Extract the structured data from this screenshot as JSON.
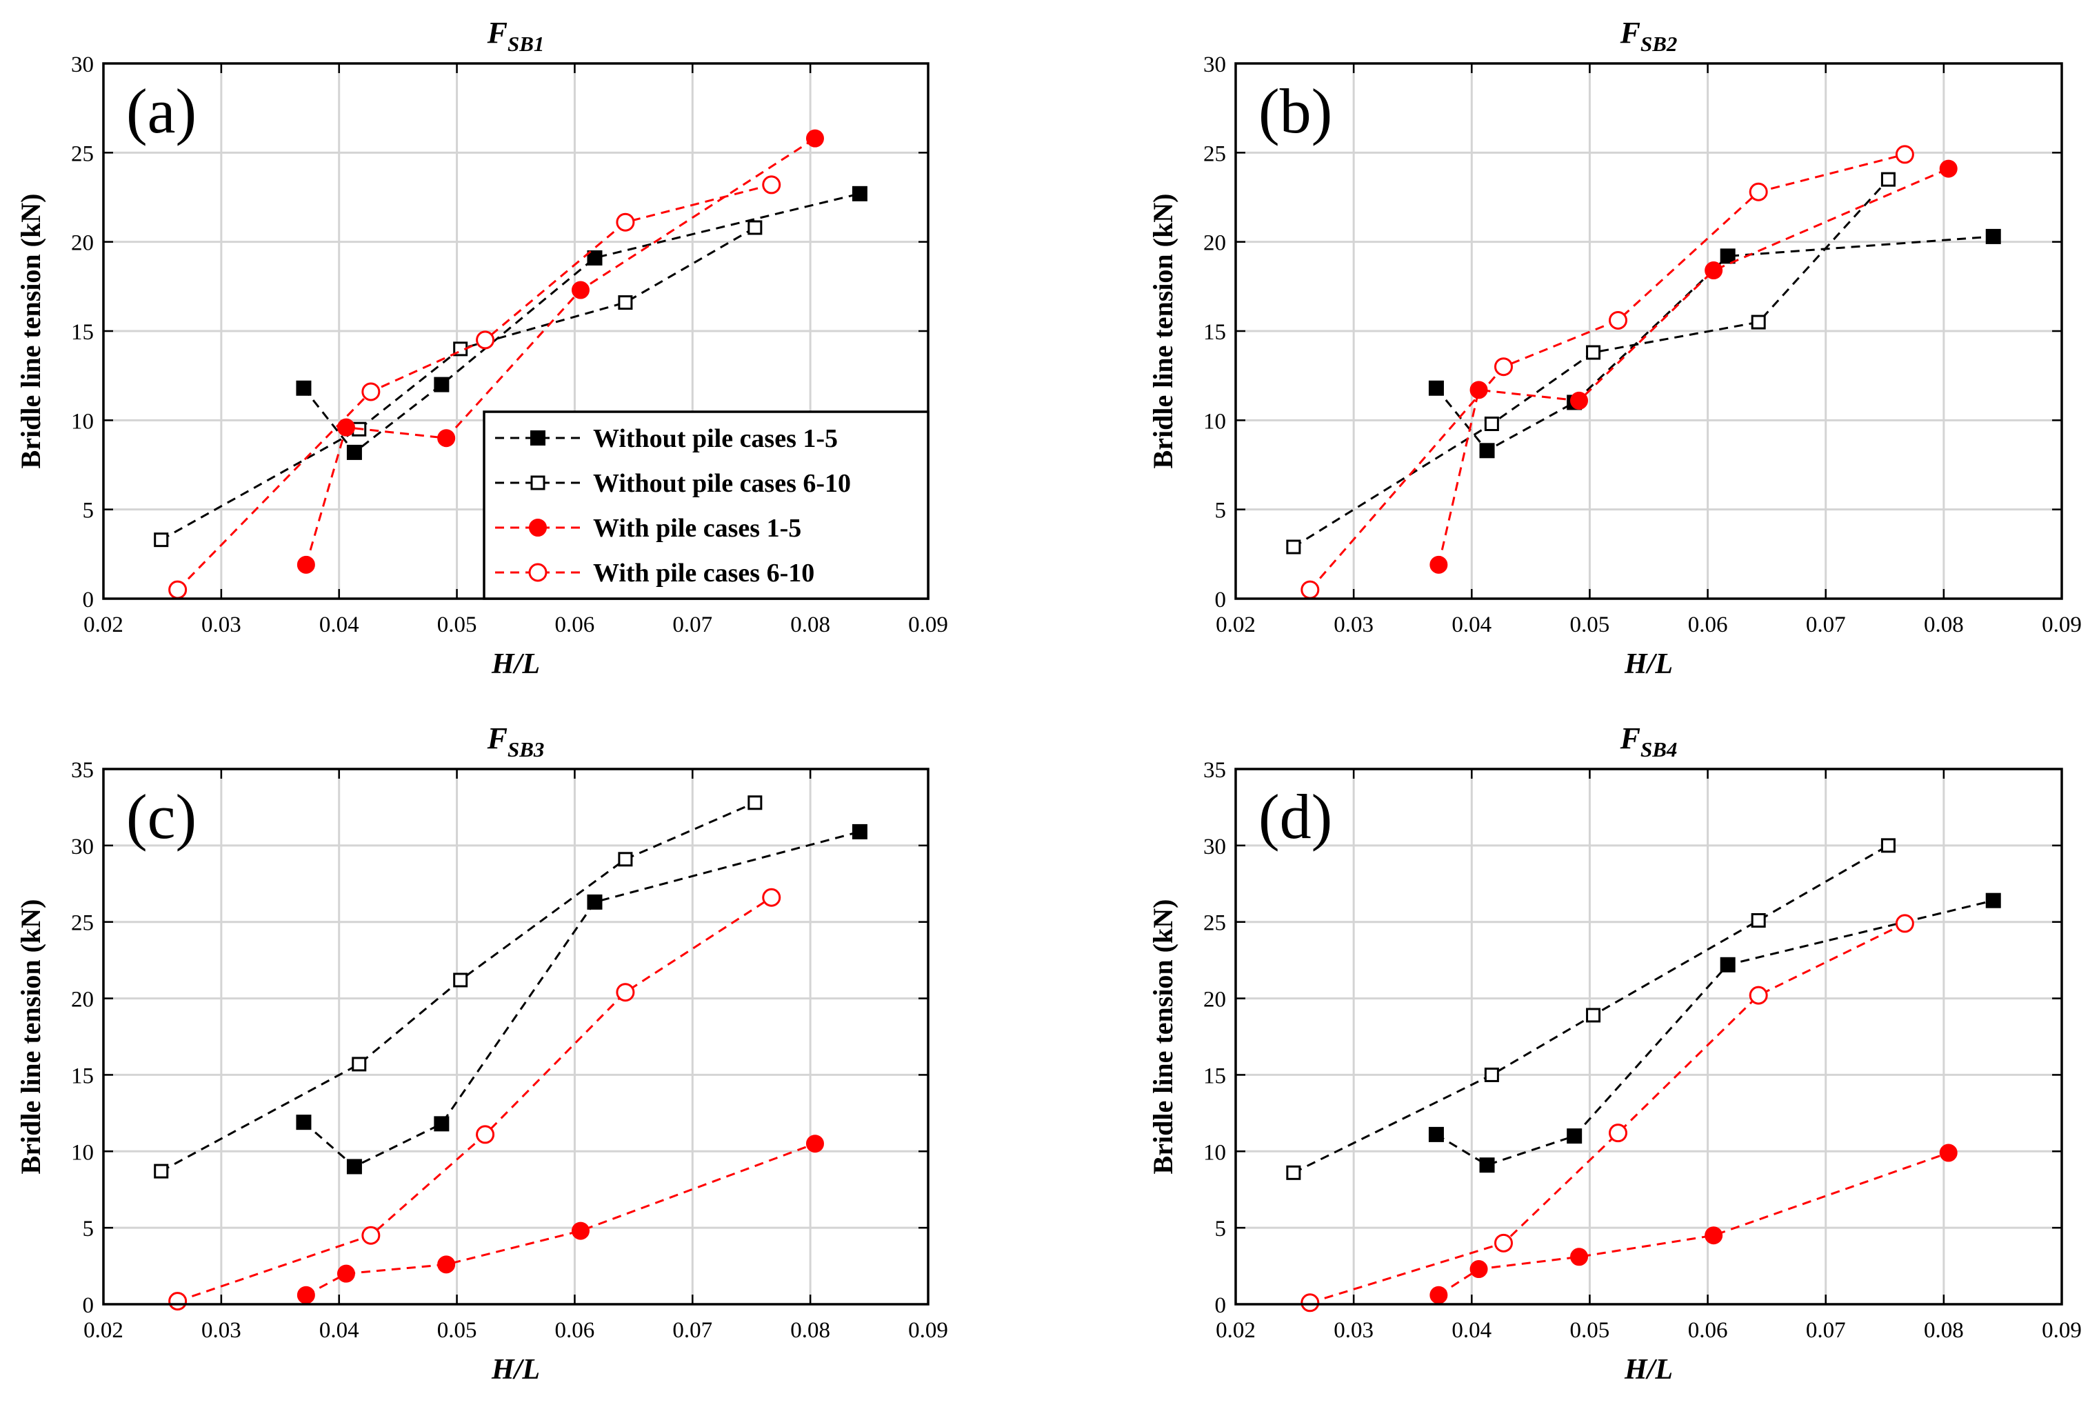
{
  "chart_data": [
    {
      "type": "line",
      "panel_label": "(a)",
      "title": "F",
      "title_subscript": "SB1",
      "xlabel": "H/L",
      "ylabel": "Bridle line tension (kN)",
      "xlim": [
        0.02,
        0.09
      ],
      "ylim": [
        0,
        30
      ],
      "xticks": [
        "0.02",
        "0.03",
        "0.04",
        "0.05",
        "0.06",
        "0.07",
        "0.08",
        "0.09"
      ],
      "yticks": [
        "0",
        "5",
        "10",
        "15",
        "20",
        "25",
        "30"
      ],
      "grid": true,
      "legend_position": "bottom-right",
      "series": [
        {
          "name": "Without pile cases 1-5",
          "color": "#000000",
          "marker": "filled-square",
          "x": [
            0.037,
            0.0413,
            0.0487,
            0.0617,
            0.0842
          ],
          "y": [
            11.8,
            8.2,
            12.0,
            19.1,
            22.7
          ]
        },
        {
          "name": "Without pile cases 6-10",
          "color": "#000000",
          "marker": "open-square",
          "x": [
            0.0249,
            0.0417,
            0.0503,
            0.0643,
            0.0753
          ],
          "y": [
            3.3,
            9.5,
            14.0,
            16.6,
            20.8
          ]
        },
        {
          "name": "With pile cases 1-5",
          "color": "#ff0000",
          "marker": "filled-circle",
          "x": [
            0.0372,
            0.0406,
            0.0491,
            0.0605,
            0.0804
          ],
          "y": [
            1.9,
            9.6,
            9.0,
            17.3,
            25.8
          ]
        },
        {
          "name": "With pile cases 6-10",
          "color": "#ff0000",
          "marker": "open-circle",
          "x": [
            0.0263,
            0.0427,
            0.0524,
            0.0643,
            0.0767
          ],
          "y": [
            0.5,
            11.6,
            14.5,
            21.1,
            23.2
          ]
        }
      ]
    },
    {
      "type": "line",
      "panel_label": "(b)",
      "title": "F",
      "title_subscript": "SB2",
      "xlabel": "H/L",
      "ylabel": "Bridle line tension (kN)",
      "xlim": [
        0.02,
        0.09
      ],
      "ylim": [
        0,
        30
      ],
      "xticks": [
        "0.02",
        "0.03",
        "0.04",
        "0.05",
        "0.06",
        "0.07",
        "0.08",
        "0.09"
      ],
      "yticks": [
        "0",
        "5",
        "10",
        "15",
        "20",
        "25",
        "30"
      ],
      "grid": true,
      "series": [
        {
          "name": "Without pile cases 1-5",
          "color": "#000000",
          "marker": "filled-square",
          "x": [
            0.037,
            0.0413,
            0.0487,
            0.0617,
            0.0842
          ],
          "y": [
            11.8,
            8.3,
            11.0,
            19.2,
            20.3
          ]
        },
        {
          "name": "Without pile cases 6-10",
          "color": "#000000",
          "marker": "open-square",
          "x": [
            0.0249,
            0.0417,
            0.0503,
            0.0643,
            0.0753
          ],
          "y": [
            2.9,
            9.8,
            13.8,
            15.5,
            23.5
          ]
        },
        {
          "name": "With pile cases 1-5",
          "color": "#ff0000",
          "marker": "filled-circle",
          "x": [
            0.0372,
            0.0406,
            0.0491,
            0.0605,
            0.0804
          ],
          "y": [
            1.9,
            11.7,
            11.1,
            18.4,
            24.1
          ]
        },
        {
          "name": "With pile cases 6-10",
          "color": "#ff0000",
          "marker": "open-circle",
          "x": [
            0.0263,
            0.0427,
            0.0524,
            0.0643,
            0.0767
          ],
          "y": [
            0.5,
            13.0,
            15.6,
            22.8,
            24.9
          ]
        }
      ]
    },
    {
      "type": "line",
      "panel_label": "(c)",
      "title": "F",
      "title_subscript": "SB3",
      "xlabel": "H/L",
      "ylabel": "Bridle line tension (kN)",
      "xlim": [
        0.02,
        0.09
      ],
      "ylim": [
        0,
        35
      ],
      "xticks": [
        "0.02",
        "0.03",
        "0.04",
        "0.05",
        "0.06",
        "0.07",
        "0.08",
        "0.09"
      ],
      "yticks": [
        "0",
        "5",
        "10",
        "15",
        "20",
        "25",
        "30",
        "35"
      ],
      "grid": true,
      "series": [
        {
          "name": "Without pile cases 1-5",
          "color": "#000000",
          "marker": "filled-square",
          "x": [
            0.037,
            0.0413,
            0.0487,
            0.0617,
            0.0842
          ],
          "y": [
            11.9,
            9.0,
            11.8,
            26.3,
            30.9
          ]
        },
        {
          "name": "Without pile cases 6-10",
          "color": "#000000",
          "marker": "open-square",
          "x": [
            0.0249,
            0.0417,
            0.0503,
            0.0643,
            0.0753
          ],
          "y": [
            8.7,
            15.7,
            21.2,
            29.1,
            32.8
          ]
        },
        {
          "name": "With pile cases 1-5",
          "color": "#ff0000",
          "marker": "filled-circle",
          "x": [
            0.0372,
            0.0406,
            0.0491,
            0.0605,
            0.0804
          ],
          "y": [
            0.6,
            2.0,
            2.6,
            4.8,
            10.5
          ]
        },
        {
          "name": "With pile cases 6-10",
          "color": "#ff0000",
          "marker": "open-circle",
          "x": [
            0.0263,
            0.0427,
            0.0524,
            0.0643,
            0.0767
          ],
          "y": [
            0.2,
            4.5,
            11.1,
            20.4,
            26.6
          ]
        }
      ]
    },
    {
      "type": "line",
      "panel_label": "(d)",
      "title": "F",
      "title_subscript": "SB4",
      "xlabel": "H/L",
      "ylabel": "Bridle line tension (kN)",
      "xlim": [
        0.02,
        0.09
      ],
      "ylim": [
        0,
        35
      ],
      "xticks": [
        "0.02",
        "0.03",
        "0.04",
        "0.05",
        "0.06",
        "0.07",
        "0.08",
        "0.09"
      ],
      "yticks": [
        "0",
        "5",
        "10",
        "15",
        "20",
        "25",
        "30",
        "35"
      ],
      "grid": true,
      "series": [
        {
          "name": "Without pile cases 1-5",
          "color": "#000000",
          "marker": "filled-square",
          "x": [
            0.037,
            0.0413,
            0.0487,
            0.0617,
            0.0842
          ],
          "y": [
            11.1,
            9.1,
            11.0,
            22.2,
            26.4
          ]
        },
        {
          "name": "Without pile cases 6-10",
          "color": "#000000",
          "marker": "open-square",
          "x": [
            0.0249,
            0.0417,
            0.0503,
            0.0643,
            0.0753
          ],
          "y": [
            8.6,
            15.0,
            18.9,
            25.1,
            30.0
          ]
        },
        {
          "name": "With pile cases 1-5",
          "color": "#ff0000",
          "marker": "filled-circle",
          "x": [
            0.0372,
            0.0406,
            0.0491,
            0.0605,
            0.0804
          ],
          "y": [
            0.6,
            2.3,
            3.1,
            4.5,
            9.9
          ]
        },
        {
          "name": "With pile cases 6-10",
          "color": "#ff0000",
          "marker": "open-circle",
          "x": [
            0.0263,
            0.0427,
            0.0524,
            0.0643,
            0.0767
          ],
          "y": [
            0.1,
            4.0,
            11.2,
            20.2,
            24.9
          ]
        }
      ]
    }
  ]
}
